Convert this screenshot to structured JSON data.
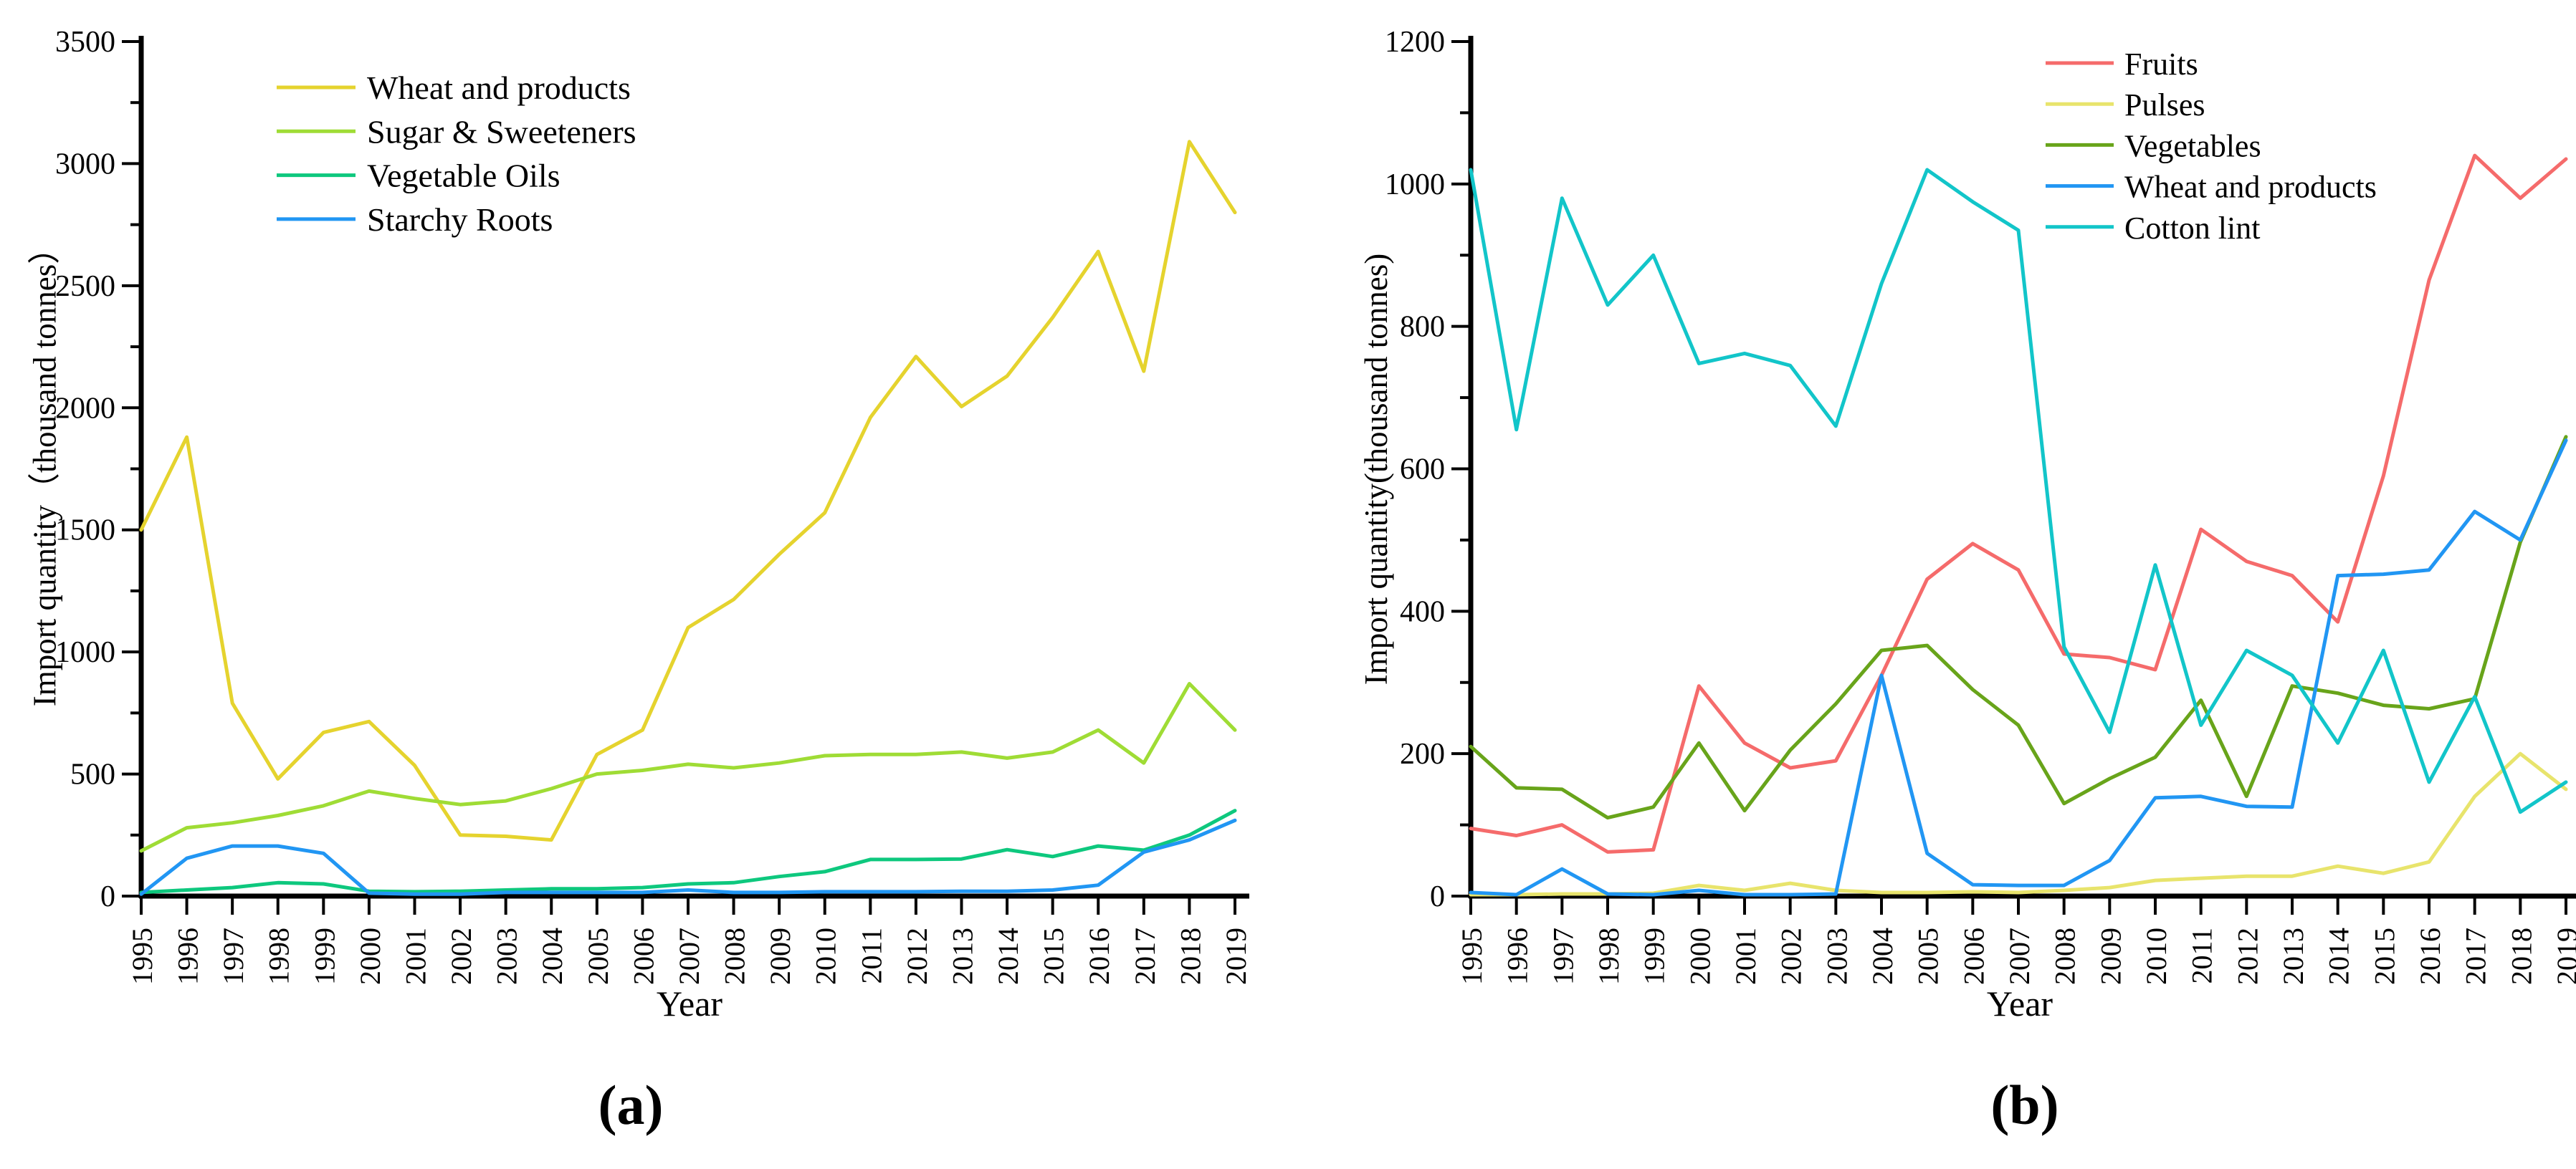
{
  "figure": {
    "panels": [
      {
        "caption": "(a)"
      },
      {
        "caption": "(b)"
      }
    ]
  },
  "chart_data": [
    {
      "type": "line",
      "title": "(a)",
      "xlabel": "Year",
      "ylabel": "Import quantity（thousand tonnes）",
      "x": [
        1995,
        1996,
        1997,
        1998,
        1999,
        2000,
        2001,
        2002,
        2003,
        2004,
        2005,
        2006,
        2007,
        2008,
        2009,
        2010,
        2011,
        2012,
        2013,
        2014,
        2015,
        2016,
        2017,
        2018,
        2019
      ],
      "ylim": [
        0,
        3500
      ],
      "ytick_major": 500,
      "ytick_minor": 250,
      "grid": false,
      "legend_position": "top-left-inside",
      "series": [
        {
          "name": "Wheat and products",
          "color": "#e5d32e",
          "values": [
            1500,
            1880,
            790,
            480,
            670,
            715,
            535,
            250,
            245,
            230,
            580,
            680,
            1100,
            1215,
            1400,
            1570,
            1960,
            2210,
            2005,
            2130,
            2370,
            2640,
            2150,
            3090,
            2800
          ]
        },
        {
          "name": "Sugar & Sweeteners",
          "color": "#9fdc35",
          "values": [
            185,
            280,
            300,
            330,
            370,
            430,
            400,
            375,
            390,
            440,
            500,
            515,
            540,
            525,
            545,
            575,
            580,
            580,
            590,
            565,
            590,
            680,
            545,
            870,
            680
          ]
        },
        {
          "name": "Vegetable Oils",
          "color": "#0ec87e",
          "values": [
            15,
            25,
            35,
            55,
            50,
            20,
            18,
            20,
            25,
            30,
            30,
            35,
            50,
            55,
            80,
            100,
            150,
            150,
            152,
            190,
            162,
            205,
            188,
            250,
            350
          ]
        },
        {
          "name": "Starchy Roots",
          "color": "#2196f3",
          "values": [
            8,
            155,
            205,
            205,
            175,
            12,
            8,
            8,
            15,
            15,
            15,
            15,
            25,
            15,
            15,
            18,
            18,
            18,
            20,
            20,
            25,
            45,
            180,
            230,
            310
          ]
        }
      ]
    },
    {
      "type": "line",
      "title": "(b)",
      "xlabel": "Year",
      "ylabel": "Import quantity(thousand tonnes)",
      "x": [
        1995,
        1996,
        1997,
        1998,
        1999,
        2000,
        2001,
        2002,
        2003,
        2004,
        2005,
        2006,
        2007,
        2008,
        2009,
        2010,
        2011,
        2012,
        2013,
        2014,
        2015,
        2016,
        2017,
        2018,
        2019
      ],
      "ylim": [
        0,
        1200
      ],
      "ytick_major": 200,
      "ytick_minor": 100,
      "grid": false,
      "legend_position": "top-right-inside",
      "series": [
        {
          "name": "Fruits",
          "color": "#f56b6b",
          "values": [
            95,
            85,
            100,
            62,
            65,
            295,
            215,
            180,
            190,
            310,
            445,
            495,
            458,
            340,
            335,
            318,
            515,
            470,
            450,
            385,
            590,
            865,
            1040,
            980,
            1035
          ]
        },
        {
          "name": "Pulses",
          "color": "#e8e46c",
          "values": [
            2,
            2,
            3,
            3,
            4,
            15,
            8,
            18,
            8,
            5,
            5,
            6,
            5,
            8,
            12,
            22,
            25,
            28,
            28,
            42,
            32,
            48,
            140,
            200,
            150
          ]
        },
        {
          "name": "Vegetables",
          "color": "#68a41a",
          "values": [
            210,
            152,
            150,
            110,
            125,
            215,
            120,
            205,
            270,
            345,
            352,
            290,
            240,
            130,
            165,
            195,
            275,
            140,
            295,
            285,
            268,
            263,
            277,
            497,
            645
          ]
        },
        {
          "name": "Wheat and products",
          "color": "#2196f3",
          "values": [
            5,
            2,
            38,
            3,
            2,
            8,
            2,
            2,
            3,
            310,
            60,
            16,
            15,
            15,
            50,
            138,
            140,
            126,
            125,
            450,
            452,
            458,
            540,
            500,
            640
          ]
        },
        {
          "name": "Cotton lint",
          "color": "#12c5c9",
          "values": [
            1020,
            655,
            980,
            830,
            900,
            748,
            762,
            745,
            660,
            860,
            1020,
            975,
            935,
            350,
            230,
            465,
            240,
            345,
            310,
            215,
            345,
            160,
            280,
            118,
            160
          ]
        }
      ]
    }
  ]
}
